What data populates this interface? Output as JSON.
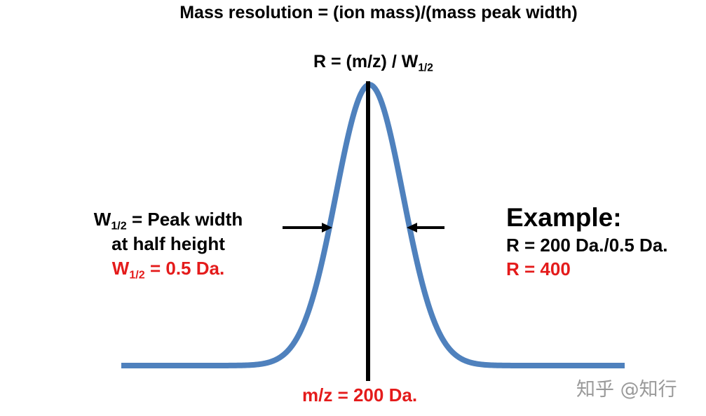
{
  "title": "Mass resolution = (ion mass)/(mass peak width)",
  "formula": {
    "prefix": "R = (m/z) / W",
    "subscript": "1/2"
  },
  "left_block": {
    "line1_prefix": "W",
    "line1_sub": "1/2",
    "line1_suffix": " = Peak width",
    "line2": "at half height",
    "line3_prefix": "W",
    "line3_sub": "1/2",
    "line3_suffix": " = 0.5 Da."
  },
  "example": {
    "heading": "Example:",
    "line1": "R = 200 Da./0.5 Da.",
    "line2": "R = 400"
  },
  "center_label": "m/z = 200 Da.",
  "watermark": "知乎 @知行",
  "colors": {
    "curve": "#4f81bd",
    "red_text": "#e41b1b",
    "text": "#000000",
    "watermark": "#9a9a9a"
  }
}
